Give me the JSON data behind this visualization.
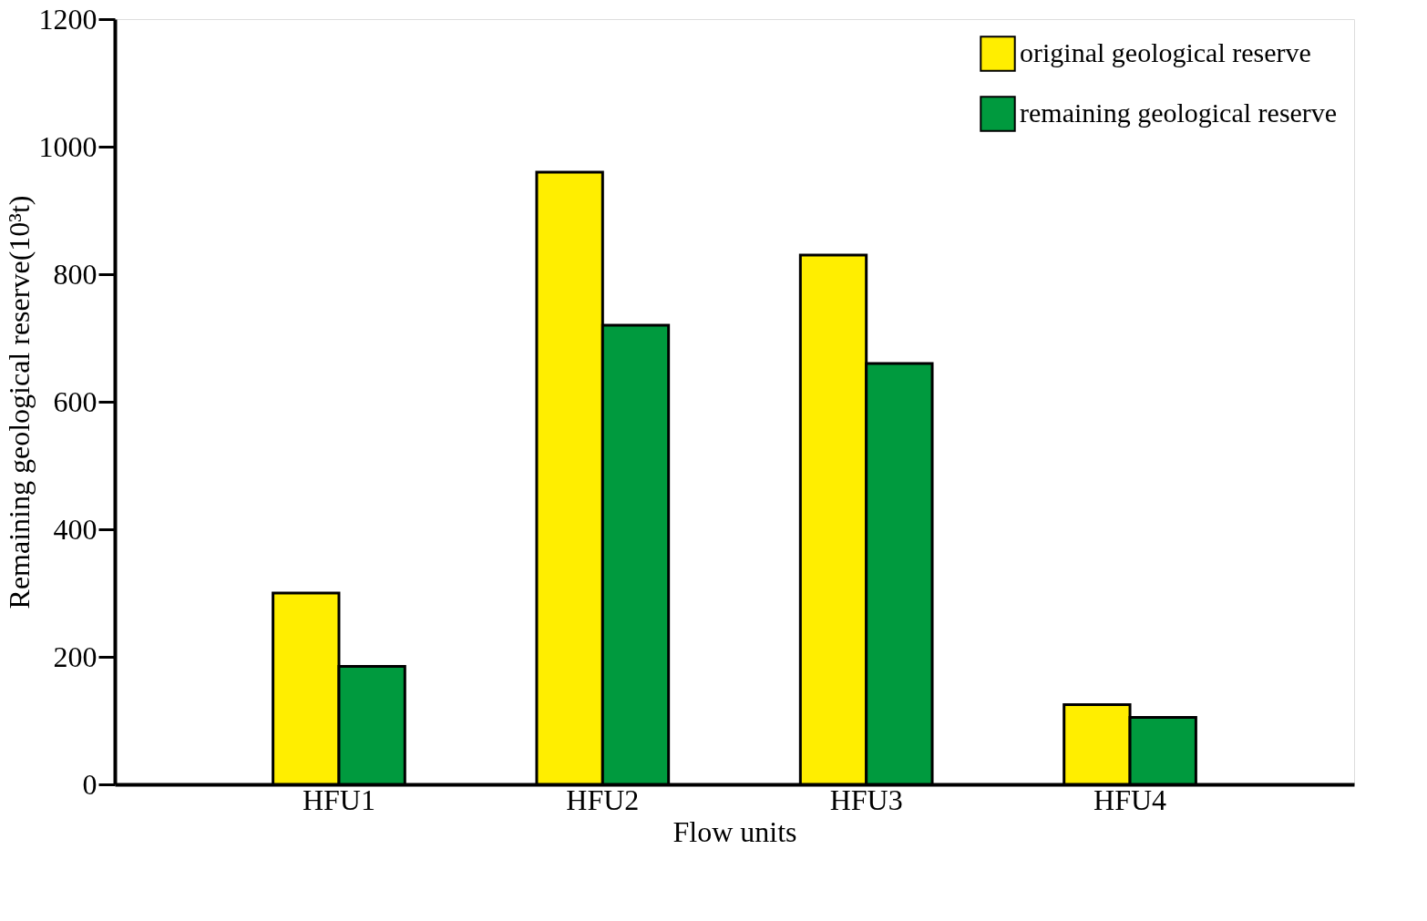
{
  "chart_data": {
    "type": "bar",
    "xlabel": "Flow units",
    "ylabel": "Remaining geological reserve(10³t)",
    "categories": [
      "HFU1",
      "HFU2",
      "HFU3",
      "HFU4"
    ],
    "series": [
      {
        "name": "original geological reserve",
        "color": "#ffee00",
        "values": [
          300,
          960,
          830,
          125
        ]
      },
      {
        "name": "remaining geological reserve",
        "color": "#009a3e",
        "values": [
          185,
          720,
          660,
          105
        ]
      }
    ],
    "ylim": [
      0,
      1200
    ],
    "yticks": [
      0,
      200,
      400,
      600,
      800,
      1000,
      1200
    ],
    "grid": false,
    "legend": "top right"
  }
}
